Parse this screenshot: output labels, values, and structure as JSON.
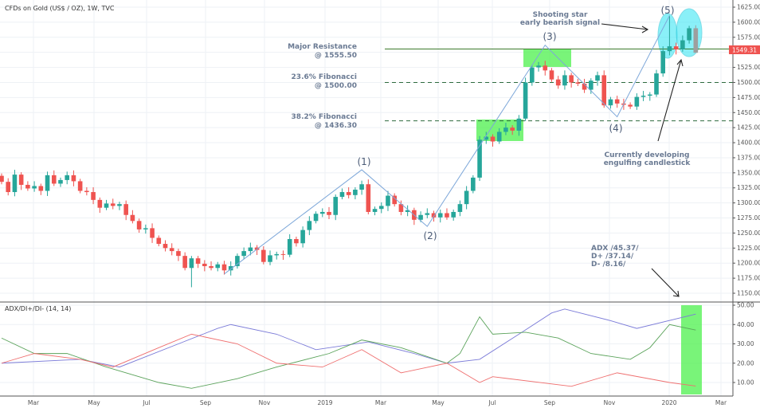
{
  "header": {
    "title": "CFDs on Gold (US$ / OZ), 1W, TVC"
  },
  "indicator": {
    "title": "ADX/DI+/DI- (14, 14)"
  },
  "last_price_label": "1549.31",
  "colors": {
    "up": "#26a69a",
    "down": "#ef5350",
    "developing": "#9e9e9e",
    "adx": "#7b7bd8",
    "di_plus": "#5ba35b",
    "di_minus": "#ef6f6f",
    "wave": "#7da7d9",
    "fib": "#2e6b3e",
    "resistance": "#3d7a2c",
    "zone": "#4cf04c",
    "highlight": "#3de7f5",
    "price_tag": "#ef5350"
  },
  "annotations": {
    "resistance": [
      "Major Resistance",
      "@ 1555.50"
    ],
    "fib236": [
      "23.6% Fibonacci",
      "@ 1500.00"
    ],
    "fib382": [
      "38.2% Fibonacci",
      "@ 1436.30"
    ],
    "shooting_star": [
      "Shooting star",
      "early bearish signal"
    ],
    "engulfing": [
      "Currently developing",
      "engulfing candlestick"
    ],
    "adx": [
      "ADX /45.37/",
      "D+ /37.14/",
      "D- /8.16/"
    ],
    "waves": [
      "(1)",
      "(2)",
      "(3)",
      "(4)",
      "(5)"
    ]
  },
  "chart_data": [
    {
      "type": "candlestick",
      "title": "CFDs on Gold (US$ / OZ), 1W, TVC",
      "ylim": [
        1135,
        1635
      ],
      "yticks": [
        "1625.00",
        "1600.00",
        "1575.00",
        "1550.00",
        "1525.00",
        "1500.00",
        "1475.00",
        "1450.00",
        "1425.00",
        "1400.00",
        "1375.00",
        "1350.00",
        "1325.00",
        "1300.00",
        "1275.00",
        "1250.00",
        "1225.00",
        "1200.00",
        "1175.00",
        "1150.00"
      ],
      "xticks": [
        "Mar",
        "May",
        "Jul",
        "Sep",
        "Nov",
        "2019",
        "Mar",
        "May",
        "Jul",
        "Sep",
        "Nov",
        "2020",
        "Mar"
      ],
      "first_open": 1345,
      "closes": [
        1335,
        1318,
        1347,
        1330,
        1324,
        1328,
        1320,
        1346,
        1332,
        1338,
        1346,
        1336,
        1320,
        1318,
        1305,
        1292,
        1299,
        1295,
        1298,
        1280,
        1270,
        1256,
        1258,
        1242,
        1232,
        1225,
        1220,
        1212,
        1192,
        1208,
        1199,
        1195,
        1192,
        1198,
        1188,
        1195,
        1212,
        1220,
        1226,
        1222,
        1202,
        1213,
        1215,
        1214,
        1240,
        1233,
        1255,
        1270,
        1282,
        1285,
        1280,
        1310,
        1318,
        1313,
        1322,
        1331,
        1285,
        1290,
        1295,
        1312,
        1298,
        1285,
        1288,
        1272,
        1280,
        1283,
        1276,
        1283,
        1276,
        1285,
        1298,
        1320,
        1342,
        1405,
        1410,
        1402,
        1418,
        1425,
        1420,
        1440,
        1500,
        1525,
        1528,
        1520,
        1505,
        1495,
        1512,
        1500,
        1498,
        1488,
        1503,
        1512,
        1462,
        1472,
        1465,
        1463,
        1460,
        1476,
        1478,
        1480,
        1515,
        1552,
        1560,
        1555,
        1570,
        1590,
        1549.31
      ],
      "notable_highs": {
        "29": 1180,
        "102": 1611,
        "106": 1595
      },
      "horizontal_levels": [
        {
          "label": "Major Resistance",
          "value": 1555.5,
          "style": "solid"
        },
        {
          "label": "23.6% Fibonacci",
          "value": 1500.0,
          "style": "dashed"
        },
        {
          "label": "38.2% Fibonacci",
          "value": 1436.3,
          "style": "dashed"
        }
      ],
      "elliott_waves": [
        {
          "label": "start",
          "week": 34,
          "price": 1182
        },
        {
          "label": "(1)",
          "week": 55,
          "price": 1355
        },
        {
          "label": "(2)",
          "week": 65,
          "price": 1261
        },
        {
          "label": "(3)",
          "week": 83,
          "price": 1562
        },
        {
          "label": "(4)",
          "week": 94,
          "price": 1443
        },
        {
          "label": "(5)",
          "week": 102,
          "price": 1611
        }
      ],
      "last_price": 1549.31
    },
    {
      "type": "line",
      "title": "ADX/DI+/DI- (14, 14)",
      "ylim": [
        5,
        51
      ],
      "yticks": [
        "50.00",
        "40.00",
        "30.00",
        "20.00",
        "10.00"
      ],
      "series": [
        {
          "name": "ADX",
          "weeks": [
            0,
            12,
            18,
            27,
            33,
            35,
            42,
            48,
            56,
            63,
            68,
            73,
            79,
            84,
            86,
            93,
            97,
            106
          ],
          "values": [
            20,
            22,
            18,
            30,
            38,
            40,
            35,
            27,
            31,
            25,
            20,
            22,
            35,
            46,
            48,
            42,
            38,
            45.37
          ]
        },
        {
          "name": "DI+",
          "weeks": [
            0,
            5,
            10,
            16,
            24,
            29,
            36,
            42,
            50,
            55,
            61,
            68,
            70,
            73,
            75,
            80,
            85,
            90,
            96,
            99,
            102,
            106
          ],
          "values": [
            33,
            25,
            25,
            18,
            10,
            7,
            12,
            18,
            25,
            32,
            28,
            20,
            25,
            44,
            35,
            36,
            33,
            25,
            22,
            28,
            40,
            37.14
          ]
        },
        {
          "name": "DI-",
          "weeks": [
            0,
            5,
            12,
            17,
            24,
            29,
            36,
            42,
            49,
            55,
            61,
            68,
            73,
            75,
            87,
            94,
            102,
            106
          ],
          "values": [
            20,
            25,
            22,
            18,
            28,
            35,
            30,
            20,
            18,
            27,
            15,
            20,
            10,
            13,
            8,
            15,
            10,
            8.16
          ]
        }
      ]
    }
  ]
}
